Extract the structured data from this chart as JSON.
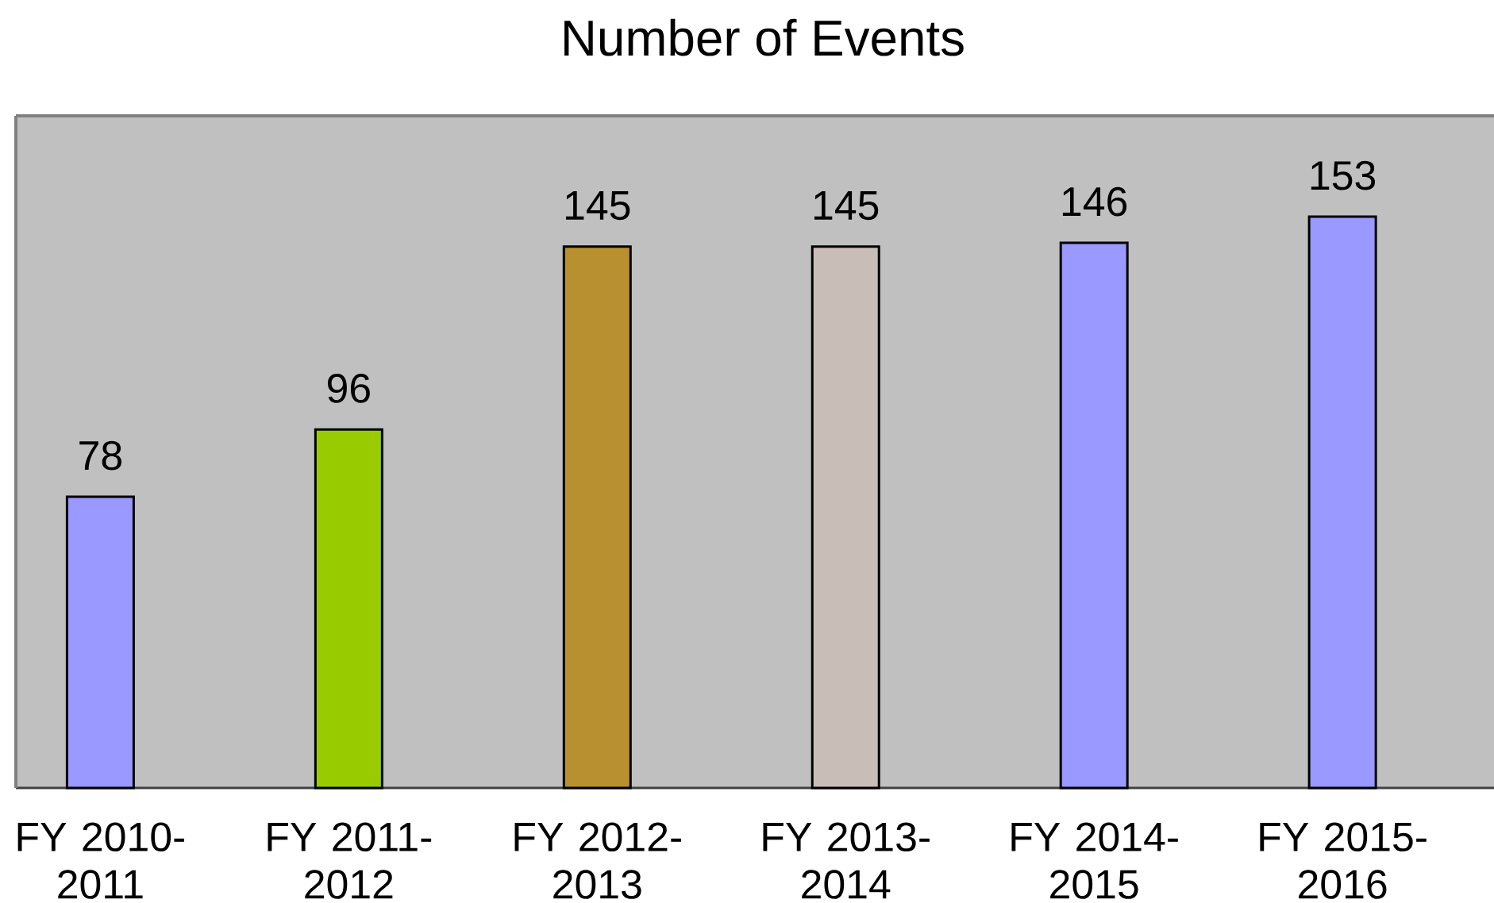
{
  "chart_data": {
    "type": "bar",
    "title": "Number of Events",
    "categories": [
      "FY 2010-2011",
      "FY 2011-2012",
      "FY 2012-2013",
      "FY 2013-2014",
      "FY 2014-2015",
      "FY 2015-2016"
    ],
    "values": [
      78,
      96,
      145,
      145,
      146,
      153
    ],
    "colors": [
      "#9999ff",
      "#99cc00",
      "#b8902f",
      "#c9bdb8",
      "#9999ff",
      "#9999ff"
    ],
    "ylim": [
      0,
      180
    ],
    "data_labels": true,
    "tick_labels": "x"
  }
}
